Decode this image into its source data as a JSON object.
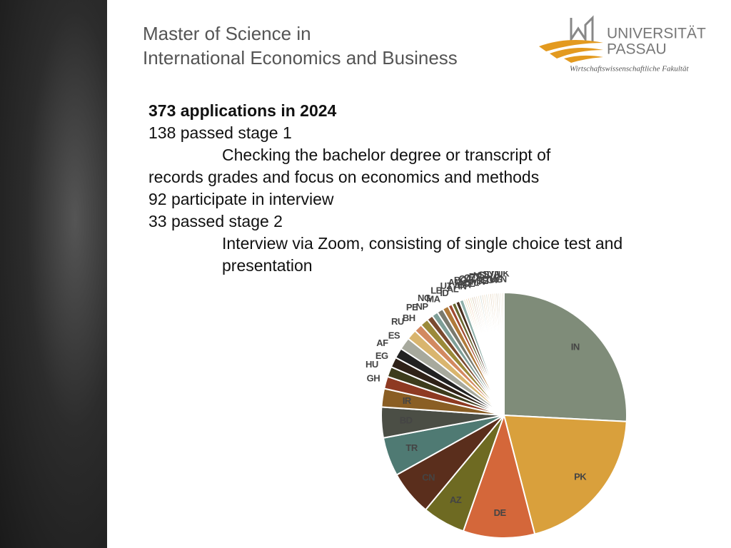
{
  "header": {
    "title_lines": [
      "Master of Science in",
      "International Economics and Business"
    ]
  },
  "logo": {
    "name": "UNIVERSITÄT",
    "city": "PASSAU",
    "faculty": "Wirtschaftswissenschaftliche Fakultät"
  },
  "body": {
    "lines": [
      "373 applications in 2024",
      "138 passed stage 1",
      "Checking the bachelor degree or transcript of records grades and focus on economics and methods",
      "92 participate in interview",
      "33 passed stage 2",
      "Interview via Zoom, consisting of single choice test and presentation"
    ]
  },
  "chart_data": {
    "type": "pie",
    "categories": [
      "IN",
      "PK",
      "DE",
      "AZ",
      "CN",
      "TR",
      "BD",
      "IR",
      "GH",
      "HU",
      "EG",
      "AF",
      "ES",
      "RU",
      "BH",
      "PE",
      "NP",
      "NG",
      "MA",
      "LB",
      "ID",
      "UZ",
      "AL",
      "AM",
      "AN",
      "BG",
      "BR",
      "CA",
      "CL",
      "CZ",
      "PL",
      "PT",
      "MK",
      "NL",
      "SE",
      "SL",
      "CO",
      "SY",
      "TW",
      "UA",
      "UG",
      "IT",
      "VN",
      "UK"
    ],
    "values": [
      96,
      75,
      35,
      21,
      22,
      19,
      15,
      9,
      6,
      5,
      5,
      5,
      6,
      5,
      4,
      4,
      3,
      3,
      3,
      3,
      2,
      2,
      2,
      2,
      1,
      1,
      1,
      1,
      1,
      1,
      1,
      1,
      1,
      1,
      1,
      1,
      1,
      1,
      1,
      1,
      1,
      1,
      1,
      1
    ],
    "colors": [
      "#7f8c79",
      "#d9a03c",
      "#d4673a",
      "#6e6a22",
      "#5a2e1c",
      "#4f7a73",
      "#4b4e45",
      "#8a5e24",
      "#8e3a22",
      "#3d3c1c",
      "#2f2218",
      "#222222",
      "#a7a99d",
      "#d9b56e",
      "#d28960",
      "#9b8a3a",
      "#7a4a30",
      "#7e9e97",
      "#7a7a6e",
      "#b07a3a",
      "#a04a30",
      "#6a6830",
      "#4a3020",
      "#8fb0aa",
      "#e8dcc0",
      "#f0d8b0",
      "#f0c8a8",
      "#e8e0c0",
      "#d8c8b0",
      "#e0d0c0",
      "#eadcc8",
      "#f2e4cc",
      "#d0d8d0",
      "#e8d8c0",
      "#f0e0c8",
      "#e0e0d0",
      "#f4e8d4",
      "#e4d4c0",
      "#ecdcc4",
      "#f0e4d0",
      "#dcd0bc",
      "#e8e0d0",
      "#f4ecdc",
      "#ece4d4"
    ]
  }
}
